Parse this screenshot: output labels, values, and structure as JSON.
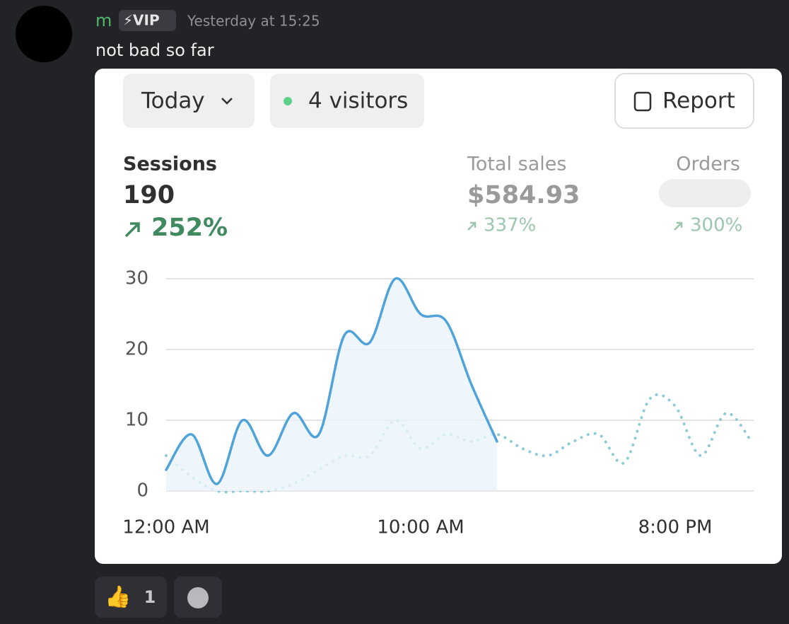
{
  "message": {
    "author": "m",
    "badge": "⚡VIP",
    "timestamp": "Yesterday at 15:25",
    "text": "not bad so far",
    "reaction": {
      "emoji": "👍",
      "count": "1"
    }
  },
  "card": {
    "range_button": "Today",
    "visitors": "4 visitors",
    "report_button": "Report",
    "stats": [
      {
        "label": "Sessions",
        "value": "190",
        "change": "252%"
      },
      {
        "label": "Total sales",
        "value": "$584.93",
        "change": "337%"
      },
      {
        "label": "Orders",
        "change": "300%"
      }
    ]
  },
  "chart_data": {
    "type": "line",
    "x": [
      0,
      1,
      2,
      3,
      4,
      5,
      6,
      7,
      8,
      9,
      10,
      11,
      12,
      13,
      14,
      15,
      16,
      17,
      18,
      19,
      20,
      21,
      22,
      23
    ],
    "series": [
      {
        "color": "#4fa3d9",
        "style": "solid",
        "fill": true,
        "values": [
          3,
          8,
          1,
          10,
          5,
          11,
          8,
          22,
          21,
          30,
          25,
          24,
          15,
          7,
          null,
          null,
          null,
          null,
          null,
          null,
          null,
          null,
          null,
          null
        ]
      },
      {
        "color": "#8ecbd8",
        "style": "dotted",
        "values": [
          5,
          2,
          0,
          0,
          0,
          1,
          3,
          5,
          5,
          10,
          6,
          8,
          7,
          8,
          6,
          5,
          7,
          8,
          4,
          13,
          12,
          5,
          11,
          7
        ]
      }
    ],
    "xlim": [
      0,
      23
    ],
    "xticks": [
      {
        "value": 0,
        "label": "12:00 AM"
      },
      {
        "value": 10,
        "label": "10:00 AM"
      },
      {
        "value": 20,
        "label": "8:00 PM"
      }
    ],
    "ylim": [
      0,
      30
    ],
    "yticks": [
      0,
      10,
      20,
      30
    ],
    "grid": true
  }
}
